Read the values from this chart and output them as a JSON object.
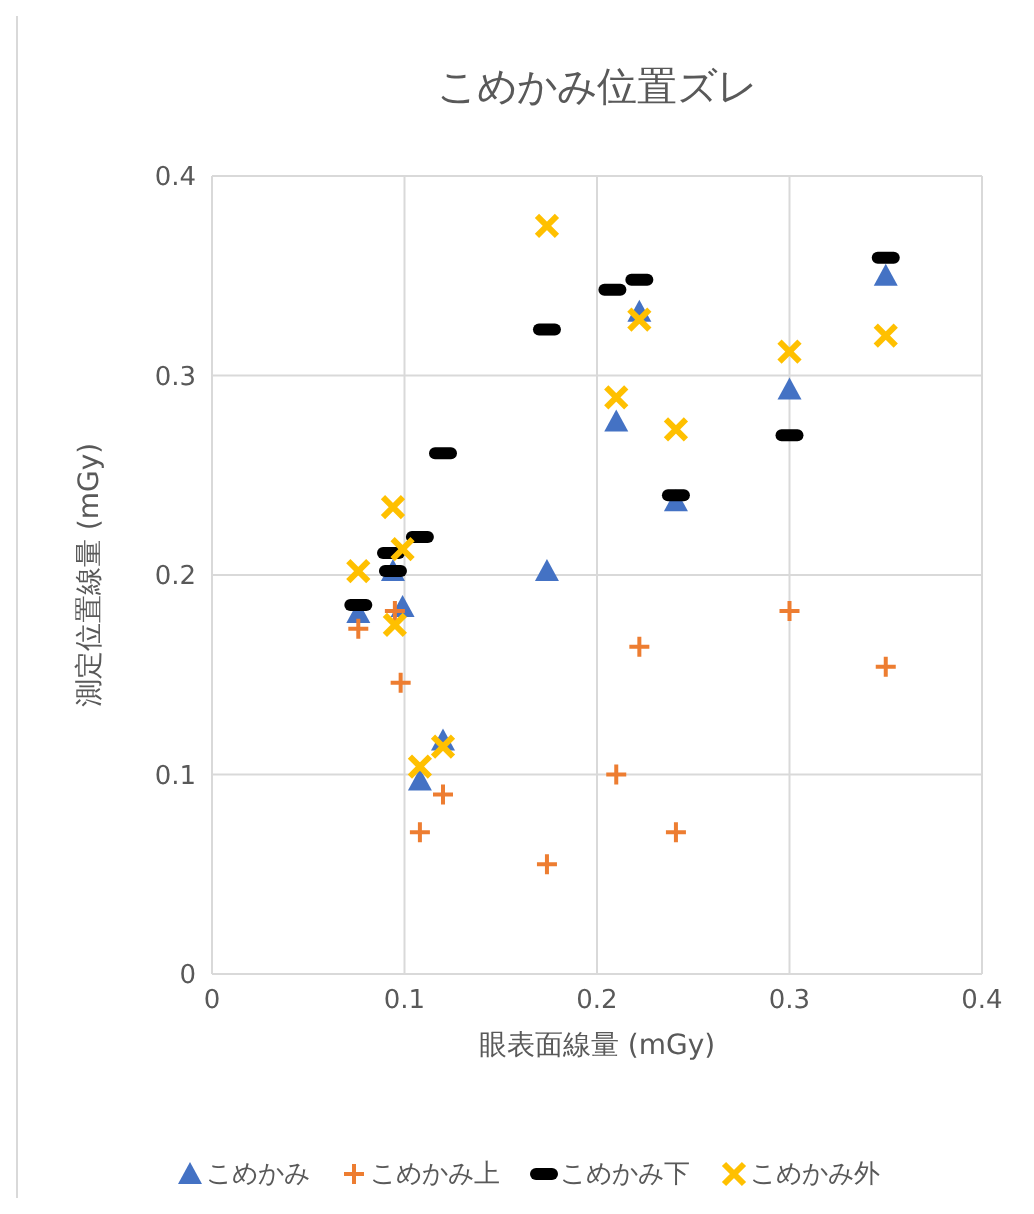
{
  "chart_data": {
    "type": "scatter",
    "title": "こめかみ位置ズレ",
    "xlabel": "眼表面線量 (mGy)",
    "ylabel": "測定位置線量 (mGy)",
    "xlim": [
      0,
      0.4
    ],
    "xticks": [
      0,
      0.1,
      0.2,
      0.3,
      0.4
    ],
    "ylim": [
      0,
      0.4
    ],
    "yticks": [
      0,
      0.1,
      0.2,
      0.3,
      0.4
    ],
    "grid": true,
    "legend": "bottom",
    "series": [
      {
        "name": "こめかみ",
        "color": "#4472c4",
        "marker": "triangle",
        "x": [
          0.076,
          0.094,
          0.099,
          0.108,
          0.12,
          0.174,
          0.21,
          0.222,
          0.241,
          0.3,
          0.35
        ],
        "values": [
          0.181,
          0.202,
          0.184,
          0.097,
          0.117,
          0.202,
          0.277,
          0.332,
          0.237,
          0.293,
          0.35
        ]
      },
      {
        "name": "こめかみ上",
        "color": "#ed7d31",
        "marker": "cross",
        "x": [
          0.076,
          0.095,
          0.098,
          0.108,
          0.12,
          0.174,
          0.21,
          0.222,
          0.241,
          0.3,
          0.35
        ],
        "values": [
          0.173,
          0.182,
          0.146,
          0.071,
          0.09,
          0.055,
          0.1,
          0.164,
          0.071,
          0.182,
          0.154
        ]
      },
      {
        "name": "こめかみ下",
        "color": "#000000",
        "marker": "square",
        "x": [
          0.076,
          0.093,
          0.094,
          0.108,
          0.12,
          0.174,
          0.208,
          0.222,
          0.241,
          0.3,
          0.35
        ],
        "values": [
          0.185,
          0.211,
          0.202,
          0.219,
          0.261,
          0.323,
          0.343,
          0.348,
          0.24,
          0.27,
          0.359
        ]
      },
      {
        "name": "こめかみ外",
        "color": "#ffc000",
        "marker": "x",
        "x": [
          0.076,
          0.094,
          0.095,
          0.099,
          0.108,
          0.12,
          0.174,
          0.21,
          0.222,
          0.241,
          0.3,
          0.35
        ],
        "values": [
          0.202,
          0.234,
          0.175,
          0.213,
          0.104,
          0.114,
          0.375,
          0.289,
          0.328,
          0.273,
          0.312,
          0.32
        ]
      }
    ]
  }
}
